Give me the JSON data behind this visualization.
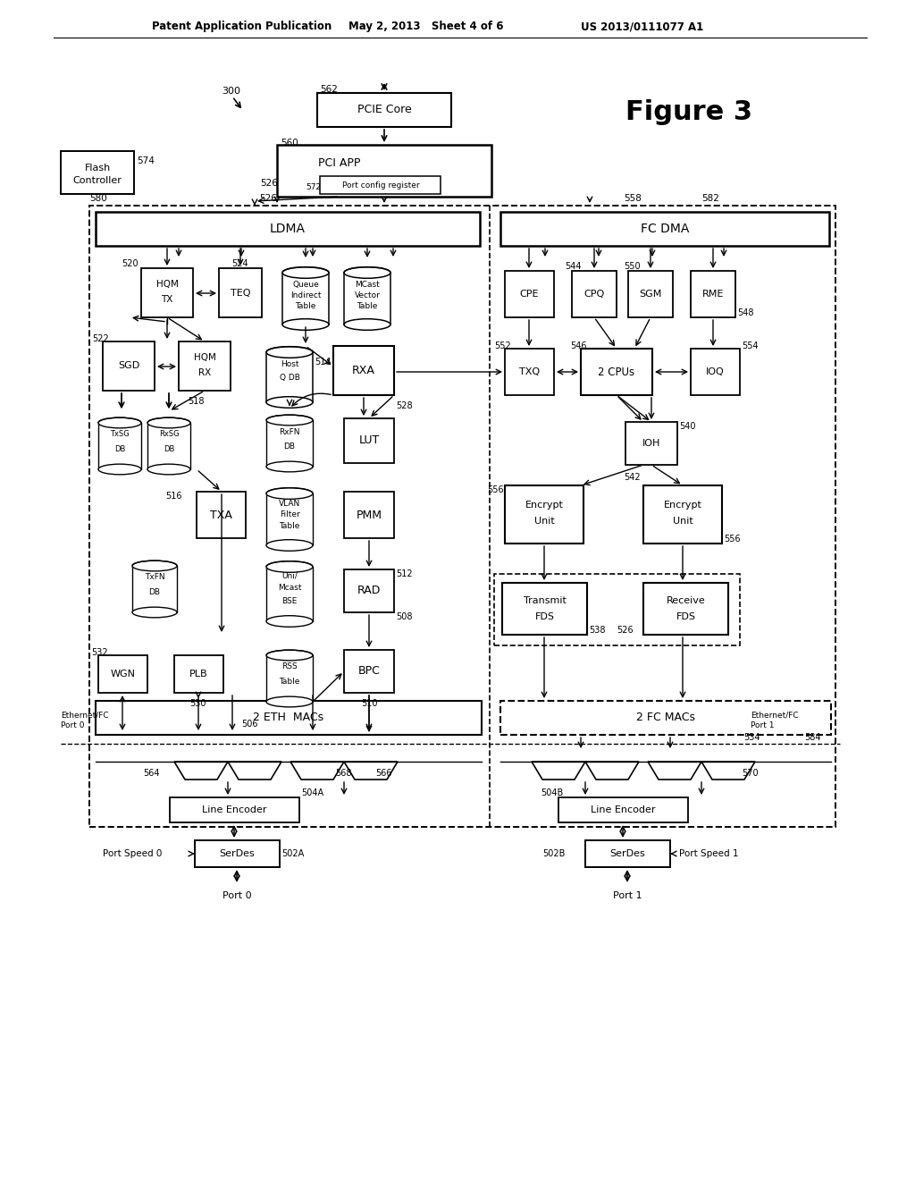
{
  "header_left": "Patent Application Publication",
  "header_mid": "May 2, 2013   Sheet 4 of 6",
  "header_right": "US 2013/0111077 A1",
  "figure_label": "Figure 3",
  "bg_color": "#ffffff"
}
